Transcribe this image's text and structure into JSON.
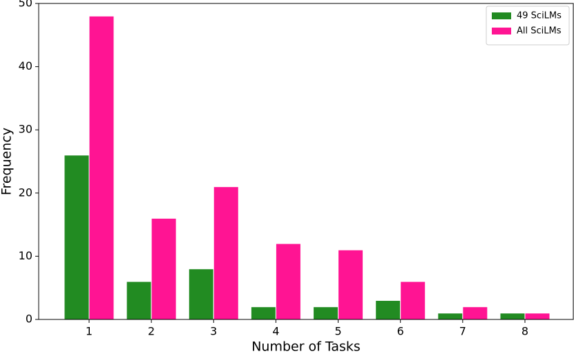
{
  "chart_data": {
    "type": "bar",
    "xlabel": "Number of Tasks",
    "ylabel": "Frequency",
    "categories": [
      "1",
      "2",
      "3",
      "4",
      "5",
      "6",
      "7",
      "8"
    ],
    "series": [
      {
        "name": "49 SciLMs",
        "color": "#228b22",
        "values": [
          26,
          6,
          8,
          2,
          2,
          3,
          1,
          1
        ]
      },
      {
        "name": "All SciLMs",
        "color": "#ff1493",
        "values": [
          48,
          16,
          21,
          12,
          11,
          6,
          2,
          1
        ]
      }
    ],
    "ylim": [
      0,
      50
    ],
    "yticks": [
      0,
      10,
      20,
      30,
      40,
      50
    ],
    "legend": "upper right"
  }
}
